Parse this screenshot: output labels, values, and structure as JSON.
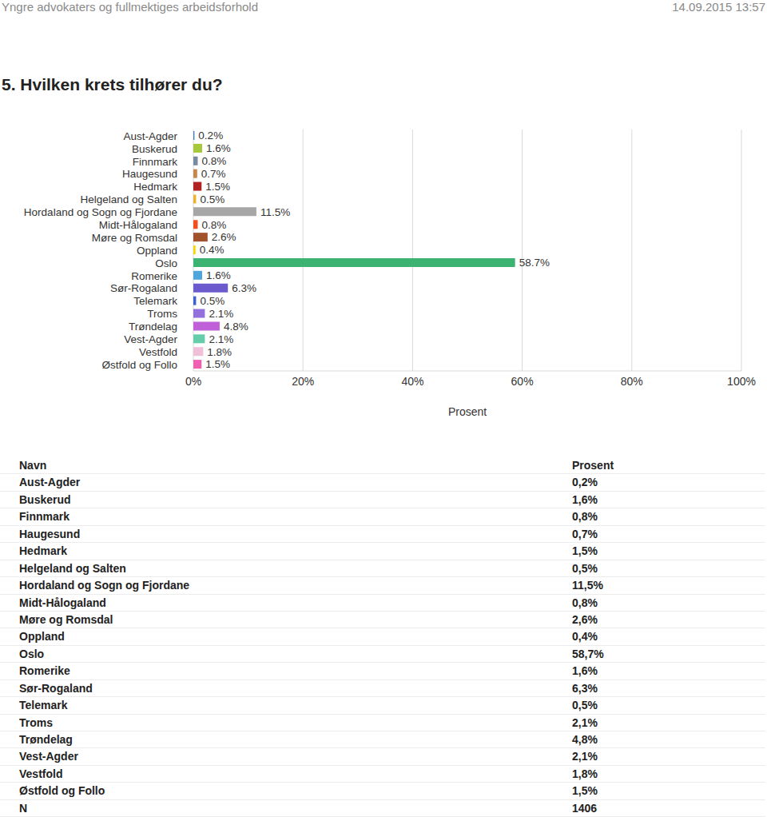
{
  "header": {
    "left": "Yngre advokaters og fullmektiges arbeidsforhold",
    "right": "14.09.2015 13:57"
  },
  "chart_data": {
    "type": "bar",
    "title": "5. Hvilken krets tilhører du?",
    "orientation": "horizontal",
    "categories": [
      "Aust-Agder",
      "Buskerud",
      "Finnmark",
      "Haugesund",
      "Hedmark",
      "Helgeland og Salten",
      "Hordaland og Sogn og Fjordane",
      "Midt-Hålogaland",
      "Møre og Romsdal",
      "Oppland",
      "Oslo",
      "Romerike",
      "Sør-Rogaland",
      "Telemark",
      "Troms",
      "Trøndelag",
      "Vest-Agder",
      "Vestfold",
      "Østfold og Follo"
    ],
    "values": [
      0.2,
      1.6,
      0.8,
      0.7,
      1.5,
      0.5,
      11.5,
      0.8,
      2.6,
      0.4,
      58.7,
      1.6,
      6.3,
      0.5,
      2.1,
      4.8,
      2.1,
      1.8,
      1.5
    ],
    "value_labels": [
      "0.2%",
      "1.6%",
      "0.8%",
      "0.7%",
      "1.5%",
      "0.5%",
      "11.5%",
      "0.8%",
      "2.6%",
      "0.4%",
      "58.7%",
      "1.6%",
      "6.3%",
      "0.5%",
      "2.1%",
      "4.8%",
      "2.1%",
      "1.8%",
      "1.5%"
    ],
    "colors": [
      "#4a7ebb",
      "#a5c93a",
      "#7a8aa0",
      "#c8864a",
      "#b22222",
      "#f0b030",
      "#a6a6a6",
      "#f05020",
      "#a0522d",
      "#f5d800",
      "#3cb371",
      "#4ea6dc",
      "#6a5acd",
      "#4060d0",
      "#9370db",
      "#c060d8",
      "#66cdaa",
      "#f0c0d8",
      "#f060b0"
    ],
    "data_labels": true,
    "xlabel": "Prosent",
    "xlim": [
      0,
      100
    ],
    "xticks": [
      {
        "value": 0,
        "label": "0%"
      },
      {
        "value": 20,
        "label": "20%"
      },
      {
        "value": 40,
        "label": "40%"
      },
      {
        "value": 60,
        "label": "60%"
      },
      {
        "value": 80,
        "label": "80%"
      },
      {
        "value": 100,
        "label": "100%"
      }
    ],
    "grid": true
  },
  "table": {
    "columns": [
      "Navn",
      "Prosent"
    ],
    "rows": [
      [
        "Aust-Agder",
        "0,2%"
      ],
      [
        "Buskerud",
        "1,6%"
      ],
      [
        "Finnmark",
        "0,8%"
      ],
      [
        "Haugesund",
        "0,7%"
      ],
      [
        "Hedmark",
        "1,5%"
      ],
      [
        "Helgeland og Salten",
        "0,5%"
      ],
      [
        "Hordaland og Sogn og Fjordane",
        "11,5%"
      ],
      [
        "Midt-Hålogaland",
        "0,8%"
      ],
      [
        "Møre og Romsdal",
        "2,6%"
      ],
      [
        "Oppland",
        "0,4%"
      ],
      [
        "Oslo",
        "58,7%"
      ],
      [
        "Romerike",
        "1,6%"
      ],
      [
        "Sør-Rogaland",
        "6,3%"
      ],
      [
        "Telemark",
        "0,5%"
      ],
      [
        "Troms",
        "2,1%"
      ],
      [
        "Trøndelag",
        "4,8%"
      ],
      [
        "Vest-Agder",
        "2,1%"
      ],
      [
        "Vestfold",
        "1,8%"
      ],
      [
        "Østfold og Follo",
        "1,5%"
      ],
      [
        "N",
        "1406"
      ]
    ]
  }
}
